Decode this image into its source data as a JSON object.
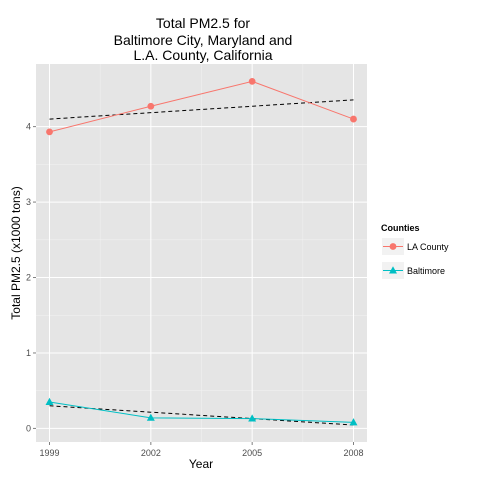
{
  "chart_data": {
    "type": "line",
    "title_lines": [
      "Total PM2.5 for",
      "Baltimore City, Maryland and",
      "L.A. County, California"
    ],
    "xlabel": "Year",
    "ylabel": "Total PM2.5 (x1000 tons)",
    "x": [
      1999,
      2002,
      2005,
      2008
    ],
    "x_tick_labels": [
      "1999",
      "2002",
      "2005",
      "2008"
    ],
    "y_ticks": [
      0,
      1,
      2,
      3,
      4
    ],
    "y_tick_labels": [
      "0",
      "1",
      "2",
      "3",
      "4"
    ],
    "xlim": [
      1998.6,
      2008.4
    ],
    "ylim": [
      -0.18,
      4.83
    ],
    "grid": true,
    "panel_background": "#e5e5e5",
    "legend": {
      "title": "Counties",
      "position": "right",
      "entries": [
        "LA County",
        "Baltimore"
      ]
    },
    "series": [
      {
        "name": "LA County",
        "values": [
          3.93,
          4.27,
          4.6,
          4.1
        ],
        "color": "#f8766d",
        "marker": "circle"
      },
      {
        "name": "Baltimore",
        "values": [
          0.35,
          0.14,
          0.13,
          0.08
        ],
        "color": "#00bfc4",
        "marker": "triangle"
      }
    ],
    "trend_lines": [
      {
        "series": "LA County",
        "values": [
          4.1,
          4.185,
          4.27,
          4.355
        ],
        "style": "dashed",
        "color": "#000000"
      },
      {
        "series": "Baltimore",
        "values": [
          0.3,
          0.215,
          0.13,
          0.045
        ],
        "style": "dashed",
        "color": "#000000"
      }
    ]
  }
}
